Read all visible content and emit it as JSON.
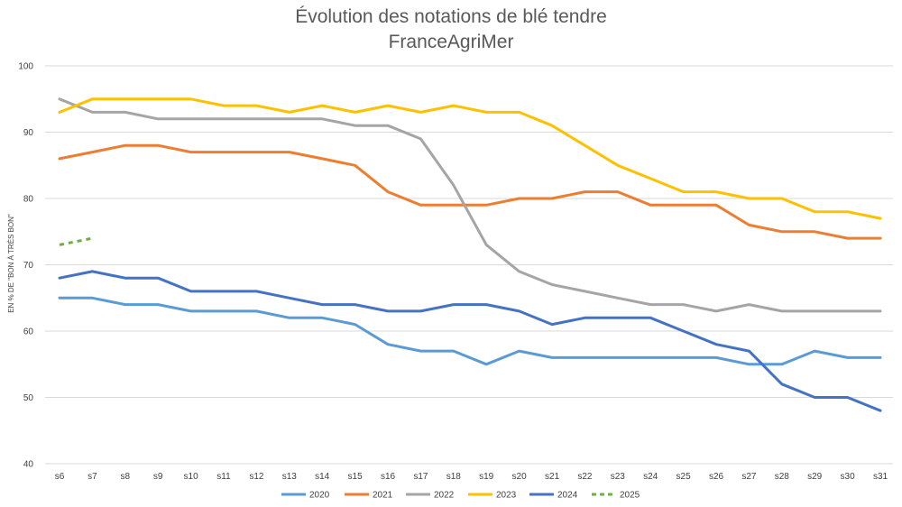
{
  "chart_data": {
    "type": "line",
    "title": "Évolution des notations de blé tendre",
    "subtitle": "FranceAgriMer",
    "xlabel": "",
    "ylabel": "EN % DE \"BON À TRÈS BON\"",
    "ylim": [
      40,
      100
    ],
    "yticks": [
      40,
      50,
      60,
      70,
      80,
      90,
      100
    ],
    "grid": true,
    "legend_position": "bottom",
    "categories": [
      "s6",
      "s7",
      "s8",
      "s9",
      "s10",
      "s11",
      "s12",
      "s13",
      "s14",
      "s15",
      "s16",
      "s17",
      "s18",
      "s19",
      "s20",
      "s21",
      "s22",
      "s23",
      "s24",
      "s25",
      "s26",
      "s27",
      "s28",
      "s29",
      "s30",
      "s31"
    ],
    "series": [
      {
        "name": "2020",
        "color": "#5b9bd5",
        "dashed": false,
        "values": [
          65,
          65,
          64,
          64,
          63,
          63,
          63,
          62,
          62,
          61,
          58,
          57,
          57,
          55,
          57,
          56,
          56,
          56,
          56,
          56,
          56,
          55,
          55,
          57,
          56,
          56
        ]
      },
      {
        "name": "2021",
        "color": "#ed7d31",
        "dashed": false,
        "values": [
          86,
          87,
          88,
          88,
          87,
          87,
          87,
          87,
          86,
          85,
          81,
          79,
          79,
          79,
          80,
          80,
          81,
          81,
          79,
          79,
          79,
          76,
          75,
          75,
          74,
          74
        ]
      },
      {
        "name": "2022",
        "color": "#a5a5a5",
        "dashed": false,
        "values": [
          95,
          93,
          93,
          92,
          92,
          92,
          92,
          92,
          92,
          91,
          91,
          89,
          82,
          73,
          69,
          67,
          66,
          65,
          64,
          64,
          63,
          64,
          63,
          63,
          63,
          63
        ]
      },
      {
        "name": "2023",
        "color": "#ffc000",
        "dashed": false,
        "values": [
          93,
          95,
          95,
          95,
          95,
          94,
          94,
          93,
          94,
          93,
          94,
          93,
          94,
          93,
          93,
          91,
          88,
          85,
          83,
          81,
          81,
          80,
          80,
          78,
          78,
          77
        ]
      },
      {
        "name": "2024",
        "color": "#4472c4",
        "dashed": false,
        "values": [
          68,
          69,
          68,
          68,
          66,
          66,
          66,
          65,
          64,
          64,
          63,
          63,
          64,
          64,
          63,
          61,
          62,
          62,
          62,
          60,
          58,
          57,
          52,
          50,
          50,
          48
        ]
      },
      {
        "name": "2025",
        "color": "#70ad47",
        "dashed": true,
        "values": [
          73,
          74,
          null,
          null,
          null,
          null,
          null,
          null,
          null,
          null,
          null,
          null,
          null,
          null,
          null,
          null,
          null,
          null,
          null,
          null,
          null,
          null,
          null,
          null,
          null,
          null
        ]
      }
    ]
  }
}
